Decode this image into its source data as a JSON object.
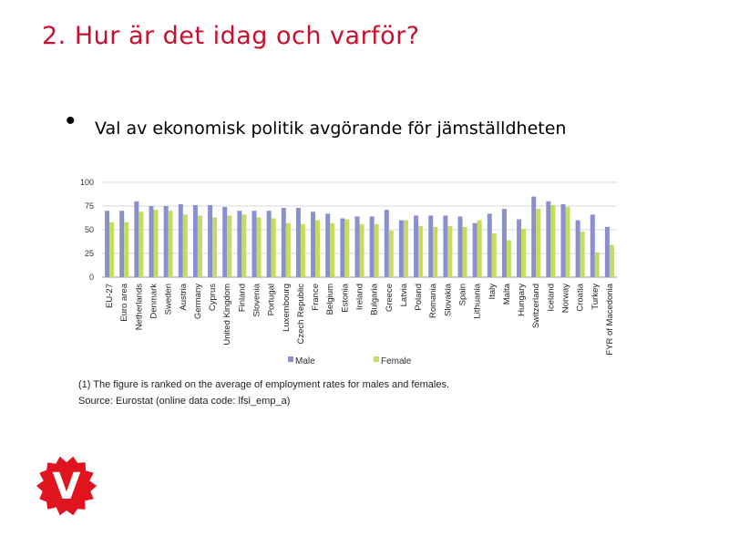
{
  "slide": {
    "title": "2. Hur är det idag och varför?",
    "bullet": "Val av ekonomisk politik avgörande för jämställdheten",
    "footnote_1": "(1) The figure is ranked on the average of employment rates for males and females.",
    "footnote_2": "Source: Eurostat (online data code: lfsi_emp_a)",
    "logo_letter": "V",
    "logo_color": "#e0141e"
  },
  "chart_data": {
    "type": "bar",
    "ylim": [
      0,
      100
    ],
    "yticks": [
      0,
      25,
      50,
      75,
      100
    ],
    "categories": [
      "EU-27",
      "Euro area",
      "Netherlands",
      "Denmark",
      "Sweden",
      "Austria",
      "Germany",
      "Cyprus",
      "United Kingdom",
      "Finland",
      "Slovenia",
      "Portugal",
      "Luxembourg",
      "Czech Republic",
      "France",
      "Belgium",
      "Estonia",
      "Ireland",
      "Bulgaria",
      "Greece",
      "Latvia",
      "Poland",
      "Romania",
      "Slovakia",
      "Spain",
      "Lithuania",
      "Italy",
      "Malta",
      "Hungary",
      "Switzerland",
      "Iceland",
      "Norway",
      "Croatia",
      "Turkey",
      "FYR of Macedonia"
    ],
    "series": [
      {
        "name": "Male",
        "color": "#8a8fd0",
        "values": [
          70,
          70,
          80,
          75,
          75,
          77,
          76,
          76,
          74,
          70,
          70,
          70,
          73,
          73,
          69,
          67,
          62,
          64,
          64,
          71,
          60,
          65,
          65,
          65,
          64,
          57,
          67,
          72,
          61,
          85,
          80,
          77,
          60,
          66,
          53
        ]
      },
      {
        "name": "Female",
        "color": "#c6dc5c",
        "values": [
          58,
          58,
          69,
          71,
          70,
          66,
          65,
          63,
          65,
          66,
          63,
          62,
          57,
          56,
          60,
          57,
          61,
          56,
          56,
          49,
          60,
          54,
          53,
          54,
          53,
          60,
          46,
          39,
          51,
          72,
          76,
          74,
          48,
          26,
          34
        ]
      }
    ],
    "legend_position": "bottom",
    "grid": true
  }
}
